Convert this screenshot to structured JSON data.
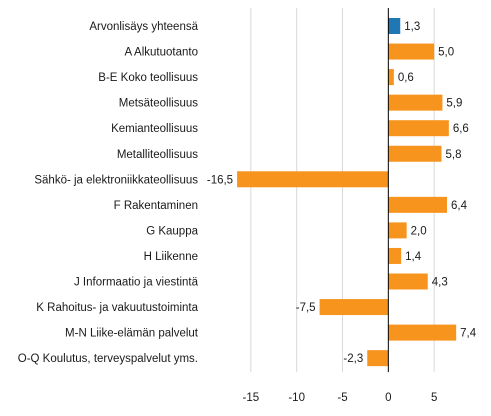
{
  "chart_data": {
    "type": "bar",
    "orientation": "horizontal",
    "title": "",
    "xlabel": "",
    "ylabel": "",
    "categories": [
      "Arvonlisäys yhteensä",
      "A Alkutuotanto",
      "B-E Koko teollisuus",
      "Metsäteollisuus",
      "Kemianteollisuus",
      "Metalliteollisuus",
      "Sähkö- ja elektroniikkateollisuus",
      "F Rakentaminen",
      "G Kauppa",
      "H Liikenne",
      "J Informaatio ja viestintä",
      "K Rahoitus- ja vakuutustoiminta",
      "M-N Liike-elämän palvelut",
      "O-Q Koulutus, terveyspalvelut yms."
    ],
    "values": [
      1.3,
      5.0,
      0.6,
      5.9,
      6.6,
      5.8,
      -16.5,
      6.4,
      2.0,
      1.4,
      4.3,
      -7.5,
      7.4,
      -2.3
    ],
    "value_labels": [
      "1,3",
      "5,0",
      "0,6",
      "5,9",
      "6,6",
      "5,8",
      "-16,5",
      "6,4",
      "2,0",
      "1,4",
      "4,3",
      "-7,5",
      "7,4",
      "-2,3"
    ],
    "xlim": [
      -20,
      10
    ],
    "xticks": [
      -15,
      -10,
      -5,
      0,
      5
    ],
    "xtick_labels": [
      "-15",
      "-10",
      "-5",
      "0",
      "5"
    ],
    "grid": true,
    "legend": "none",
    "colors": {
      "highlight": "#1f77b4",
      "bars": "#f7941d",
      "grid": "#d9d9d9",
      "axis": "#000000"
    },
    "highlight_index": 0
  }
}
